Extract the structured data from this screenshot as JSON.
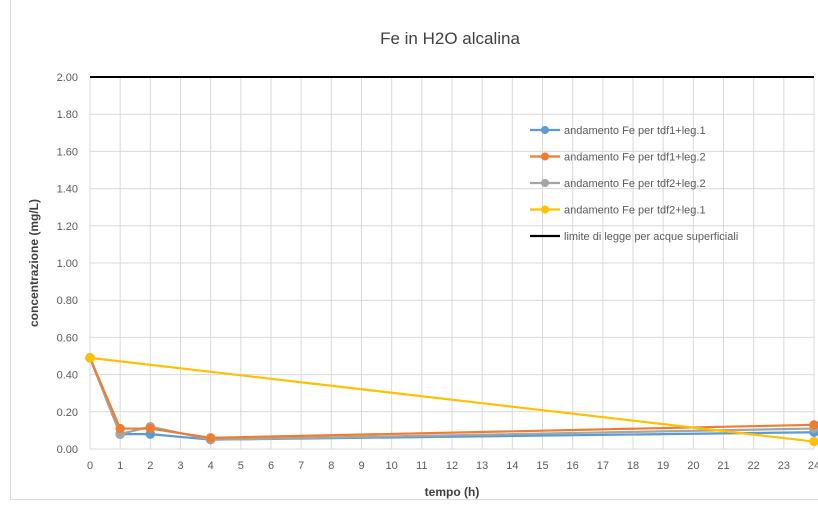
{
  "chart_data": {
    "type": "line",
    "title": "Fe in H2O alcalina",
    "xlabel": "tempo (h)",
    "ylabel": "concentrazione (mg/L)",
    "x_ticks": [
      0,
      1,
      2,
      3,
      4,
      5,
      6,
      7,
      8,
      9,
      10,
      11,
      12,
      13,
      14,
      15,
      16,
      17,
      18,
      19,
      20,
      21,
      22,
      23,
      24
    ],
    "y_ticks": [
      "0.00",
      "0.20",
      "0.40",
      "0.60",
      "0.80",
      "1.00",
      "1.20",
      "1.40",
      "1.60",
      "1.80",
      "2.00"
    ],
    "xlim": [
      0,
      24
    ],
    "ylim": [
      0,
      2.0
    ],
    "grid": true,
    "legend_position": "top-right",
    "series": [
      {
        "name": "andamento Fe per tdf1+leg.1",
        "color": "#5b9bd5",
        "marker": true,
        "x": [
          0,
          1,
          2,
          4,
          24
        ],
        "y": [
          0.49,
          0.08,
          0.08,
          0.05,
          0.09
        ]
      },
      {
        "name": "andamento Fe per tdf1+leg.2",
        "color": "#ed7d31",
        "marker": true,
        "x": [
          0,
          1,
          2,
          4,
          24
        ],
        "y": [
          0.49,
          0.11,
          0.11,
          0.06,
          0.13
        ]
      },
      {
        "name": "andamento Fe per tdf2+leg.2",
        "color": "#a5a5a5",
        "marker": true,
        "x": [
          0,
          1,
          2,
          4,
          24
        ],
        "y": [
          0.49,
          0.08,
          0.12,
          0.05,
          0.11
        ]
      },
      {
        "name": "andamento Fe per tdf2+leg.1",
        "color": "#ffc000",
        "marker": true,
        "x": [
          0,
          24
        ],
        "y": [
          0.49,
          0.04
        ]
      },
      {
        "name": "limite di legge per acque superficiali",
        "color": "#000000",
        "marker": false,
        "x": [
          0,
          24
        ],
        "y": [
          2.0,
          2.0
        ]
      }
    ]
  }
}
